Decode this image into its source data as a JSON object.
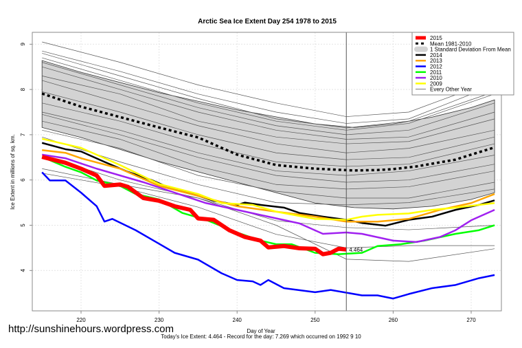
{
  "footer": {
    "url": "http://sunshinehours.wordpress.com",
    "caption": "Today's Ice Extent: 4.464  - Record for the day: 7.269 which occurred on 1992 9 10"
  },
  "chart_data": {
    "type": "line",
    "title": "Arctic Sea Ice Extent Day 254 1978 to 2015",
    "xlabel": "Day of Year",
    "ylabel": "Ice Extent in millions of sq. km.",
    "xlim": [
      214,
      274
    ],
    "ylim": [
      3.2,
      9.3
    ],
    "xticks": [
      220,
      230,
      240,
      250,
      260,
      270
    ],
    "yticks": [
      4,
      5,
      6,
      7,
      8,
      9
    ],
    "grid": true,
    "legend_position": "top-right",
    "current_day": 254,
    "annotation": "4.464",
    "legend": [
      "2015",
      "Mean 1981-2010",
      "1 Standard Deviation From Mean",
      "2014",
      "2013",
      "2012",
      "2011",
      "2010",
      "2009",
      "Every Other Year"
    ],
    "std_band": {
      "name": "1 Standard Deviation From Mean",
      "color": "#d3d3d3",
      "x": [
        215,
        220,
        230,
        240,
        250,
        255,
        260,
        265,
        270,
        273
      ],
      "upper": [
        8.64,
        8.38,
        7.93,
        7.55,
        7.24,
        7.16,
        7.24,
        7.39,
        7.6,
        7.77
      ],
      "lower": [
        7.16,
        6.94,
        6.41,
        5.95,
        5.49,
        5.39,
        5.36,
        5.42,
        5.57,
        5.72
      ]
    },
    "series": [
      {
        "name": "Mean 1981-2010",
        "color": "#000000",
        "style": "dotted",
        "x": [
          215,
          220,
          225,
          230,
          235,
          240,
          245,
          250,
          255,
          258,
          260,
          263,
          265,
          268,
          270,
          273
        ],
        "y": [
          7.91,
          7.62,
          7.39,
          7.16,
          6.94,
          6.56,
          6.33,
          6.25,
          6.21,
          6.22,
          6.24,
          6.3,
          6.36,
          6.45,
          6.56,
          6.72
        ]
      },
      {
        "name": "2014",
        "color": "#000000",
        "x": [
          215,
          218,
          220,
          223,
          226,
          229,
          231,
          235,
          237,
          240,
          241,
          243,
          246,
          248,
          251,
          254,
          256,
          259,
          262,
          265,
          268,
          271,
          273
        ],
        "y": [
          6.82,
          6.68,
          6.63,
          6.4,
          6.18,
          6.0,
          5.85,
          5.65,
          5.54,
          5.45,
          5.5,
          5.45,
          5.39,
          5.27,
          5.19,
          5.12,
          5.05,
          4.99,
          5.12,
          5.19,
          5.34,
          5.45,
          5.55
        ]
      },
      {
        "name": "2013",
        "color": "#ffa500",
        "x": [
          215,
          218,
          220,
          225,
          230,
          235,
          240,
          245,
          250,
          254,
          258,
          262,
          266,
          270,
          273
        ],
        "y": [
          6.66,
          6.6,
          6.48,
          6.25,
          5.87,
          5.65,
          5.42,
          5.3,
          5.19,
          5.08,
          5.08,
          5.14,
          5.34,
          5.49,
          5.69
        ]
      },
      {
        "name": "2012",
        "color": "#0000ff",
        "x": [
          215,
          216,
          218,
          220,
          222,
          223,
          224,
          227,
          230,
          232,
          235,
          238,
          240,
          242,
          243,
          244,
          246,
          250,
          252,
          256,
          258,
          260,
          262,
          265,
          268,
          271,
          273
        ],
        "y": [
          6.17,
          5.99,
          5.99,
          5.72,
          5.42,
          5.08,
          5.14,
          4.89,
          4.59,
          4.39,
          4.24,
          3.94,
          3.79,
          3.76,
          3.68,
          3.79,
          3.61,
          3.52,
          3.57,
          3.45,
          3.45,
          3.38,
          3.48,
          3.61,
          3.68,
          3.83,
          3.9
        ]
      },
      {
        "name": "2011",
        "color": "#00ff00",
        "x": [
          215,
          218,
          220,
          222,
          225,
          227,
          230,
          233,
          236,
          240,
          243,
          245,
          247,
          250,
          253,
          256,
          258,
          261,
          264,
          268,
          271,
          273
        ],
        "y": [
          6.51,
          6.29,
          6.17,
          5.99,
          5.87,
          5.69,
          5.57,
          5.27,
          5.12,
          4.84,
          4.66,
          4.58,
          4.58,
          4.39,
          4.36,
          4.39,
          4.54,
          4.58,
          4.66,
          4.81,
          4.89,
          5.0
        ]
      },
      {
        "name": "2010",
        "color": "#a020f0",
        "x": [
          215,
          218,
          222,
          225,
          228,
          232,
          236,
          240,
          244,
          248,
          251,
          254,
          256,
          260,
          263,
          266,
          268,
          270,
          273
        ],
        "y": [
          6.56,
          6.48,
          6.25,
          6.1,
          5.95,
          5.72,
          5.49,
          5.34,
          5.19,
          5.04,
          4.81,
          4.84,
          4.81,
          4.66,
          4.63,
          4.74,
          4.89,
          5.11,
          5.34
        ]
      },
      {
        "name": "2009",
        "color": "#ffff00",
        "x": [
          215,
          218,
          220,
          225,
          230,
          235,
          238,
          242,
          245,
          250,
          254,
          256,
          258,
          262,
          265,
          268,
          273
        ],
        "y": [
          6.91,
          6.79,
          6.71,
          6.33,
          5.91,
          5.69,
          5.49,
          5.45,
          5.3,
          5.14,
          5.12,
          5.19,
          5.23,
          5.26,
          5.34,
          5.39,
          5.49
        ]
      },
      {
        "name": "2015",
        "color": "#ff0000",
        "x": [
          215,
          218,
          220,
          222,
          223,
          225,
          226,
          228,
          230,
          232,
          234,
          235,
          237,
          239,
          241,
          243,
          244,
          246,
          248,
          250,
          251,
          252,
          253,
          254
        ],
        "y": [
          6.51,
          6.38,
          6.25,
          6.1,
          5.87,
          5.9,
          5.85,
          5.6,
          5.54,
          5.42,
          5.34,
          5.15,
          5.12,
          4.89,
          4.74,
          4.66,
          4.51,
          4.54,
          4.49,
          4.48,
          4.36,
          4.39,
          4.48,
          4.464
        ]
      }
    ],
    "other_years": {
      "name": "Every Other Year",
      "color": "#555555",
      "x": [
        215,
        225,
        235,
        245,
        254,
        262,
        273
      ],
      "y": [
        [
          9.05,
          8.6,
          8.1,
          7.7,
          7.4,
          7.5,
          8.2
        ],
        [
          8.85,
          8.4,
          7.9,
          7.5,
          7.25,
          7.35,
          8.1
        ],
        [
          8.8,
          8.3,
          7.8,
          7.35,
          7.15,
          7.3,
          7.95
        ],
        [
          8.7,
          8.2,
          7.7,
          7.3,
          7.1,
          7.25,
          7.9
        ],
        [
          8.6,
          8.1,
          7.6,
          7.2,
          7.0,
          7.1,
          7.7
        ],
        [
          8.5,
          8.0,
          7.5,
          7.1,
          6.9,
          6.95,
          7.5
        ],
        [
          8.3,
          7.9,
          7.3,
          6.95,
          6.8,
          6.85,
          7.35
        ],
        [
          8.2,
          7.7,
          7.2,
          6.8,
          6.6,
          6.7,
          7.1
        ],
        [
          7.95,
          7.5,
          7.0,
          6.6,
          6.45,
          6.5,
          6.95
        ],
        [
          7.7,
          7.3,
          6.8,
          6.4,
          6.3,
          6.35,
          6.8
        ],
        [
          7.5,
          7.1,
          6.6,
          6.2,
          6.1,
          6.2,
          6.55
        ],
        [
          7.45,
          7.0,
          6.5,
          6.1,
          5.95,
          6.0,
          6.35
        ],
        [
          7.3,
          6.9,
          6.3,
          5.9,
          5.8,
          5.85,
          6.2
        ],
        [
          7.1,
          6.7,
          6.1,
          5.75,
          5.6,
          5.6,
          5.95
        ],
        [
          6.95,
          6.4,
          5.9,
          5.5,
          5.45,
          5.5,
          5.8
        ],
        [
          6.25,
          5.9,
          5.6,
          5.1,
          4.95,
          4.9,
          5.0
        ],
        [
          6.15,
          5.85,
          5.4,
          4.8,
          4.5,
          4.55,
          4.55
        ],
        [
          6.55,
          6.0,
          5.6,
          5.0,
          4.25,
          4.2,
          4.48
        ]
      ]
    }
  }
}
